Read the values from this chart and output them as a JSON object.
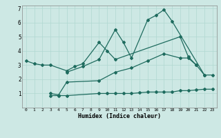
{
  "xlabel": "Humidex (Indice chaleur)",
  "bg_color": "#cde8e4",
  "line_color": "#1e6b5e",
  "grid_color": "#b0d8d0",
  "xlim": [
    -0.5,
    23.5
  ],
  "ylim": [
    0,
    7.2
  ],
  "xticks": [
    0,
    1,
    2,
    3,
    4,
    5,
    6,
    7,
    8,
    9,
    10,
    11,
    12,
    13,
    14,
    15,
    16,
    17,
    18,
    19,
    20,
    21,
    22,
    23
  ],
  "yticks": [
    1,
    2,
    3,
    4,
    5,
    6,
    7
  ],
  "line1_x": [
    0,
    1,
    2,
    3,
    5,
    6,
    7,
    9,
    10,
    11,
    19,
    20,
    21
  ],
  "line1_y": [
    3.3,
    3.1,
    3.0,
    3.0,
    2.6,
    2.9,
    3.1,
    4.6,
    4.0,
    3.4,
    5.0,
    3.6,
    3.0
  ],
  "line2_x": [
    5,
    7,
    9,
    11,
    12,
    13,
    15,
    16,
    17,
    18,
    22
  ],
  "line2_y": [
    2.5,
    2.9,
    3.4,
    5.5,
    4.6,
    3.5,
    6.2,
    6.5,
    6.9,
    6.1,
    2.3
  ],
  "line3_x": [
    3,
    4,
    5,
    9,
    10,
    11,
    12,
    13,
    14,
    15,
    16,
    17,
    18,
    19,
    20,
    21,
    22,
    23
  ],
  "line3_y": [
    0.85,
    0.85,
    0.85,
    1.0,
    1.0,
    1.0,
    1.0,
    1.0,
    1.05,
    1.1,
    1.1,
    1.1,
    1.1,
    1.2,
    1.2,
    1.25,
    1.3,
    1.3
  ],
  "line4_x": [
    3,
    4,
    5,
    9,
    11,
    13,
    15,
    17,
    19,
    20,
    21,
    22,
    23
  ],
  "line4_y": [
    1.0,
    0.9,
    1.8,
    1.9,
    2.5,
    2.8,
    3.3,
    3.8,
    3.5,
    3.5,
    3.0,
    2.3,
    2.3
  ]
}
